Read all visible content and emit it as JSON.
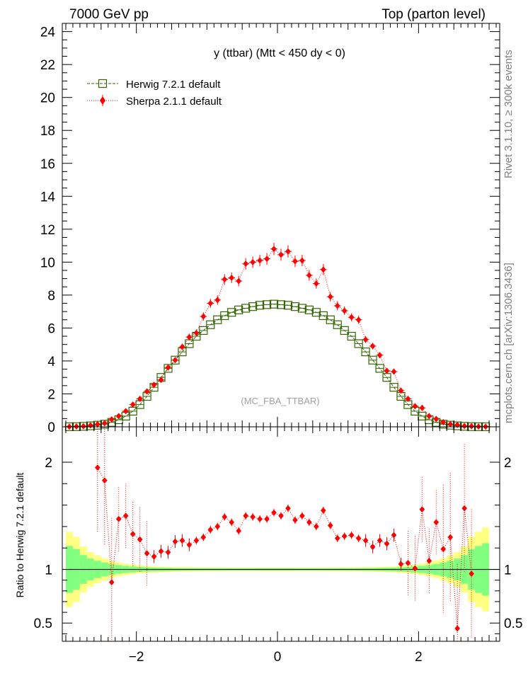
{
  "header": {
    "left": "7000 GeV pp",
    "right": "Top (parton level)"
  },
  "side_text": {
    "rivet": "Rivet 3.1.10, ≥ 300k events",
    "mcplots": "mcplots.cern.ch [arXiv:1306.3436]"
  },
  "chart_data": [
    {
      "type": "line",
      "title": "y (ttbar) (Mtt < 450 dy < 0)",
      "watermark": "(MC_FBA_TTBAR)",
      "xlim": [
        -3.05,
        3.15
      ],
      "ylim": [
        0,
        24.5
      ],
      "yticks": [
        0,
        2,
        4,
        6,
        8,
        10,
        12,
        14,
        16,
        18,
        20,
        22,
        24
      ],
      "ytick_labels": [
        "0",
        "2",
        "4",
        "6",
        "8",
        "10",
        "12",
        "14",
        "16",
        "18",
        "20",
        "22",
        "24"
      ],
      "legend_position": "top-left",
      "legend": [
        "Herwig 7.2.1 default",
        "Sherpa 2.1.1 default"
      ],
      "colors": {
        "herwig": "#336600",
        "sherpa": "#ff0000"
      },
      "x": [
        -2.95,
        -2.85,
        -2.75,
        -2.65,
        -2.55,
        -2.45,
        -2.35,
        -2.25,
        -2.15,
        -2.05,
        -1.95,
        -1.85,
        -1.75,
        -1.65,
        -1.55,
        -1.45,
        -1.35,
        -1.25,
        -1.15,
        -1.05,
        -0.95,
        -0.85,
        -0.75,
        -0.65,
        -0.55,
        -0.45,
        -0.35,
        -0.25,
        -0.15,
        -0.05,
        0.05,
        0.15,
        0.25,
        0.35,
        0.45,
        0.55,
        0.65,
        0.75,
        0.85,
        0.95,
        1.05,
        1.15,
        1.25,
        1.35,
        1.45,
        1.55,
        1.65,
        1.75,
        1.85,
        1.95,
        2.05,
        2.15,
        2.25,
        2.35,
        2.45,
        2.55,
        2.65,
        2.75,
        2.85,
        2.95
      ],
      "series": [
        {
          "name": "Herwig 7.2.1 default",
          "values": [
            0.005,
            0.01,
            0.03,
            0.06,
            0.1,
            0.16,
            0.27,
            0.43,
            0.65,
            0.95,
            1.35,
            1.85,
            2.4,
            3.0,
            3.55,
            4.05,
            4.55,
            5.05,
            5.5,
            5.85,
            6.2,
            6.5,
            6.75,
            6.95,
            7.1,
            7.2,
            7.3,
            7.38,
            7.42,
            7.45,
            7.42,
            7.38,
            7.3,
            7.2,
            7.1,
            6.95,
            6.75,
            6.5,
            6.2,
            5.85,
            5.5,
            5.05,
            4.55,
            4.05,
            3.55,
            3.0,
            2.4,
            1.85,
            1.35,
            0.95,
            0.65,
            0.43,
            0.27,
            0.16,
            0.1,
            0.06,
            0.03,
            0.01,
            0.005,
            0.002
          ]
        },
        {
          "name": "Sherpa 2.1.1 default",
          "values": [
            0.01,
            0.02,
            0.04,
            0.09,
            0.16,
            0.22,
            0.45,
            0.65,
            0.95,
            1.35,
            1.7,
            2.15,
            2.55,
            2.85,
            3.6,
            4.05,
            4.85,
            5.45,
            5.7,
            6.7,
            7.5,
            7.7,
            8.95,
            9.05,
            8.85,
            9.9,
            10.0,
            10.1,
            10.2,
            10.8,
            10.45,
            10.65,
            10.05,
            10.1,
            9.2,
            8.7,
            9.55,
            7.9,
            7.35,
            7.05,
            6.65,
            6.5,
            5.3,
            4.9,
            4.35,
            3.4,
            3.35,
            2.2,
            1.7,
            1.25,
            1.15,
            0.65,
            0.48,
            0.28,
            0.16,
            0.12,
            0.05,
            0.04,
            0.015,
            0.01
          ]
        }
      ]
    },
    {
      "type": "line",
      "ylabel": "Ratio to Herwig 7.2.1 default",
      "xlim": [
        -3.05,
        3.15
      ],
      "ylim": [
        0.33,
        2.33
      ],
      "yticks": [
        0.5,
        1,
        2
      ],
      "ytick_labels": [
        "0.5",
        "1",
        "2"
      ],
      "xticks": [
        -2,
        0,
        2
      ],
      "xtick_labels": [
        "−2",
        "0",
        "2"
      ],
      "x": [
        -2.55,
        -2.45,
        -2.35,
        -2.25,
        -2.15,
        -2.05,
        -1.95,
        -1.85,
        -1.75,
        -1.65,
        -1.55,
        -1.45,
        -1.35,
        -1.25,
        -1.15,
        -1.05,
        -0.95,
        -0.85,
        -0.75,
        -0.65,
        -0.55,
        -0.45,
        -0.35,
        -0.25,
        -0.15,
        -0.05,
        0.05,
        0.15,
        0.25,
        0.35,
        0.45,
        0.55,
        0.65,
        0.75,
        0.85,
        0.95,
        1.05,
        1.15,
        1.25,
        1.35,
        1.45,
        1.55,
        1.65,
        1.75,
        1.85,
        1.95,
        2.05,
        2.15,
        2.25,
        2.35,
        2.45,
        2.55,
        2.65,
        2.75
      ],
      "series": [
        {
          "name": "Sherpa 2.1.1 default",
          "values": [
            1.95,
            1.83,
            0.88,
            1.47,
            1.5,
            1.33,
            1.28,
            1.15,
            1.12,
            1.17,
            1.16,
            1.26,
            1.27,
            1.23,
            1.27,
            1.3,
            1.37,
            1.4,
            1.49,
            1.44,
            1.36,
            1.5,
            1.49,
            1.47,
            1.47,
            1.53,
            1.5,
            1.57,
            1.46,
            1.5,
            1.44,
            1.4,
            1.55,
            1.41,
            1.29,
            1.31,
            1.32,
            1.29,
            1.27,
            1.21,
            1.27,
            1.24,
            1.32,
            1.05,
            1.06,
            1.01,
            1.56,
            1.08,
            1.44,
            1.19,
            1.3,
            0.45,
            1.57,
            0.96
          ]
        }
      ]
    }
  ]
}
